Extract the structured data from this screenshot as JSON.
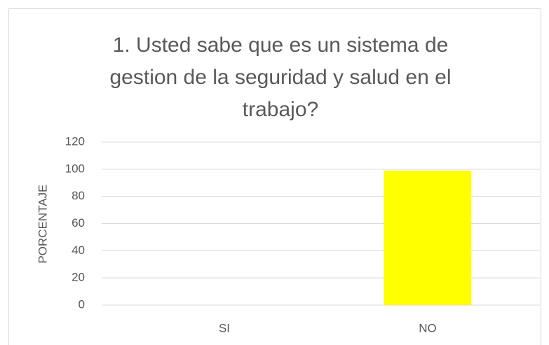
{
  "chart_data": {
    "type": "bar",
    "title": [
      "1. Usted sabe que es un sistema de",
      "gestion de la seguridad y salud en el",
      "trabajo?"
    ],
    "y_label": "PORCENTAJE",
    "categories": [
      "SI",
      "NO"
    ],
    "values": [
      0,
      99
    ],
    "color": "#ffff00",
    "ylim": [
      0,
      120
    ],
    "yticks": [
      0,
      20,
      40,
      60,
      80,
      100,
      120
    ],
    "grid": true
  }
}
